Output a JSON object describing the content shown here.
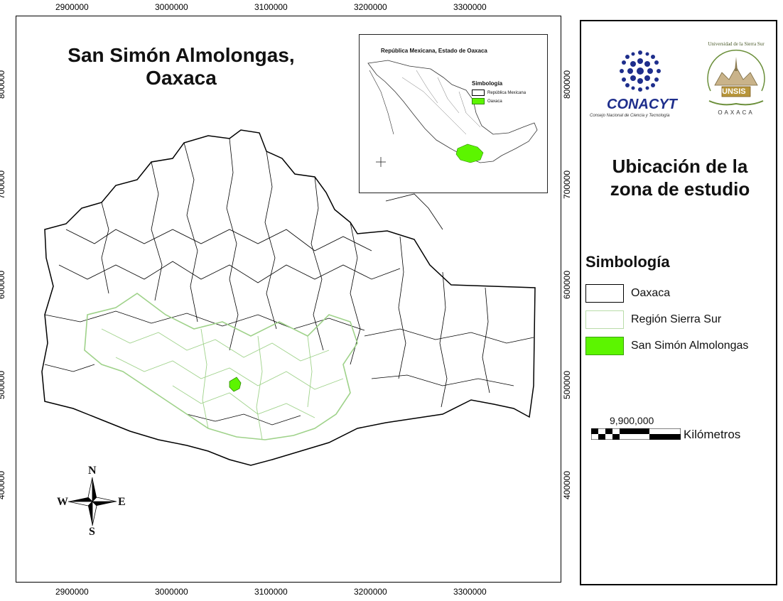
{
  "map": {
    "title_line1": "San Simón Almolongas,",
    "title_line2": "Oaxaca",
    "x_ticks": [
      "2900000",
      "3000000",
      "3100000",
      "3200000",
      "3300000"
    ],
    "y_ticks": [
      "800000",
      "700000",
      "600000",
      "500000",
      "400000"
    ],
    "region_fill": "#ffffff",
    "outline_color": "#000000",
    "sierra_sur_color": "#9fd28a",
    "highlight_color": "#5cf500"
  },
  "compass": {
    "n": "N",
    "s": "S",
    "e": "E",
    "w": "W"
  },
  "inset": {
    "title": "República Mexicana, Estado de Oaxaca",
    "legend_title": "Simbología",
    "legend_items": [
      {
        "label": "República Mexicana",
        "color": "#ffffff"
      },
      {
        "label": "Oaxaca",
        "color": "#5cf500"
      }
    ]
  },
  "panel": {
    "conacyt_name": "CONACYT",
    "conacyt_sub": "Consejo Nacional de Ciencia y Tecnología",
    "unsis_name": "UNSIS",
    "unsis_ring": "Universidad de la Sierra Sur",
    "unsis_place": "OAXACA",
    "title_line1": "Ubicación de la",
    "title_line2": "zona de estudio",
    "legend_title": "Simbología",
    "legend_items": [
      {
        "label": "Oaxaca",
        "fill": "#ffffff",
        "stroke": "#000000"
      },
      {
        "label": "Región Sierra Sur",
        "fill": "#ffffff",
        "stroke": "#b9dca8"
      },
      {
        "label": "San Simón Almolongas",
        "fill": "#5cf500",
        "stroke": "#3aa000"
      }
    ],
    "scale_value": "9,900,000",
    "scale_units": "Kilómetros"
  }
}
